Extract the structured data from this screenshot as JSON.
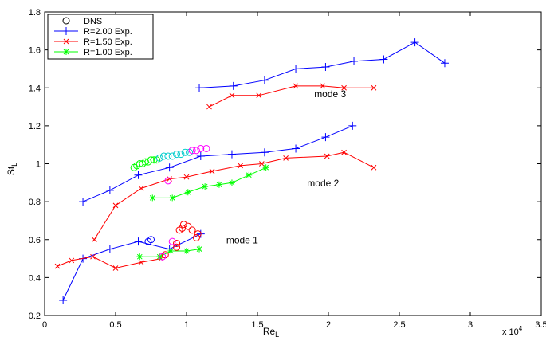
{
  "chart_data": {
    "type": "scatter",
    "xlabel": "Re",
    "xlabel_sub": "L",
    "ylabel": "St",
    "ylabel_sub": "L",
    "x_multiplier": "x 10",
    "x_multiplier_exp": "4",
    "xlim": [
      0,
      35000
    ],
    "ylim": [
      0.2,
      1.8
    ],
    "xticks": [
      0,
      5000,
      10000,
      15000,
      20000,
      25000,
      30000,
      35000
    ],
    "xtick_labels": [
      "0",
      "0.5",
      "1",
      "1.5",
      "2",
      "2.5",
      "3",
      "3.5"
    ],
    "yticks": [
      0.2,
      0.4,
      0.6,
      0.8,
      1.0,
      1.2,
      1.4,
      1.6,
      1.8
    ],
    "ytick_labels": [
      "0.2",
      "0.4",
      "0.6",
      "0.8",
      "1",
      "1.2",
      "1.4",
      "1.6",
      "1.8"
    ],
    "grid": false,
    "legend_position": "top-left",
    "legend": [
      {
        "label": "DNS",
        "marker": "circle",
        "color": "#000000",
        "line": false
      },
      {
        "label": "R=2.00 Exp.",
        "marker": "plus",
        "color": "#0000ff",
        "line": true
      },
      {
        "label": "R=1.50 Exp.",
        "marker": "x",
        "color": "#ff0000",
        "line": true
      },
      {
        "label": "R=1.00 Exp.",
        "marker": "star",
        "color": "#00ff00",
        "line": true
      }
    ],
    "annotations": [
      {
        "text": "mode 3",
        "x": 19000,
        "y": 1.35
      },
      {
        "text": "mode 2",
        "x": 18500,
        "y": 0.88
      },
      {
        "text": "mode 1",
        "x": 12800,
        "y": 0.58
      }
    ],
    "series": [
      {
        "color": "#0000ff",
        "marker": "plus",
        "line": true,
        "points": [
          [
            10900,
            1.4
          ],
          [
            13300,
            1.41
          ],
          [
            15500,
            1.44
          ],
          [
            17700,
            1.5
          ],
          [
            19800,
            1.51
          ],
          [
            21800,
            1.54
          ],
          [
            23900,
            1.55
          ],
          [
            26100,
            1.64
          ],
          [
            28200,
            1.53
          ]
        ]
      },
      {
        "color": "#0000ff",
        "marker": "plus",
        "line": true,
        "points": [
          [
            2700,
            0.8
          ],
          [
            4600,
            0.86
          ],
          [
            6600,
            0.94
          ],
          [
            8800,
            0.98
          ],
          [
            11000,
            1.04
          ],
          [
            13200,
            1.05
          ],
          [
            15500,
            1.06
          ],
          [
            17700,
            1.08
          ],
          [
            19800,
            1.14
          ],
          [
            21700,
            1.2
          ]
        ]
      },
      {
        "color": "#0000ff",
        "marker": "plus",
        "line": true,
        "points": [
          [
            1300,
            0.28
          ],
          [
            2700,
            0.5
          ],
          [
            4600,
            0.55
          ],
          [
            6600,
            0.59
          ],
          [
            8800,
            0.55
          ],
          [
            11000,
            0.63
          ]
        ]
      },
      {
        "color": "#ff0000",
        "marker": "x",
        "line": true,
        "points": [
          [
            11600,
            1.3
          ],
          [
            13200,
            1.36
          ],
          [
            15100,
            1.36
          ],
          [
            17700,
            1.41
          ],
          [
            19600,
            1.41
          ],
          [
            21100,
            1.4
          ],
          [
            23200,
            1.4
          ]
        ]
      },
      {
        "color": "#ff0000",
        "marker": "x",
        "line": true,
        "points": [
          [
            3500,
            0.6
          ],
          [
            5000,
            0.78
          ],
          [
            6800,
            0.87
          ],
          [
            8800,
            0.92
          ],
          [
            10000,
            0.93
          ],
          [
            11800,
            0.96
          ],
          [
            13800,
            0.99
          ],
          [
            15300,
            1.0
          ],
          [
            17000,
            1.03
          ],
          [
            19900,
            1.04
          ],
          [
            21100,
            1.06
          ],
          [
            23200,
            0.98
          ]
        ]
      },
      {
        "color": "#ff0000",
        "marker": "x",
        "line": true,
        "points": [
          [
            900,
            0.46
          ],
          [
            1900,
            0.49
          ],
          [
            3400,
            0.51
          ],
          [
            5000,
            0.45
          ],
          [
            6800,
            0.48
          ],
          [
            8200,
            0.5
          ]
        ]
      },
      {
        "color": "#00ff00",
        "marker": "star",
        "line": true,
        "points": [
          [
            7600,
            0.82
          ],
          [
            9000,
            0.82
          ],
          [
            10100,
            0.85
          ],
          [
            11300,
            0.88
          ],
          [
            12300,
            0.89
          ],
          [
            13200,
            0.9
          ],
          [
            14400,
            0.94
          ],
          [
            15600,
            0.98
          ]
        ]
      },
      {
        "color": "#00ff00",
        "marker": "star",
        "line": true,
        "points": [
          [
            6700,
            0.51
          ],
          [
            8100,
            0.51
          ],
          [
            8900,
            0.54
          ],
          [
            10000,
            0.54
          ],
          [
            10900,
            0.55
          ]
        ]
      },
      {
        "color": "#ff0000",
        "marker": "circle",
        "line": false,
        "points": [
          [
            8500,
            0.52
          ],
          [
            9300,
            0.56
          ],
          [
            9300,
            0.58
          ],
          [
            9500,
            0.65
          ],
          [
            9700,
            0.66
          ],
          [
            9800,
            0.68
          ],
          [
            10100,
            0.67
          ],
          [
            10400,
            0.65
          ],
          [
            10700,
            0.61
          ],
          [
            10800,
            0.63
          ]
        ]
      },
      {
        "color": "#0000ff",
        "marker": "circle",
        "line": false,
        "points": [
          [
            7300,
            0.59
          ],
          [
            7500,
            0.6
          ]
        ]
      },
      {
        "color": "#ff00ff",
        "marker": "circle",
        "line": false,
        "points": [
          [
            8300,
            0.51
          ],
          [
            9000,
            0.59
          ],
          [
            8700,
            0.91
          ]
        ]
      },
      {
        "color": "#00ff00",
        "marker": "circle",
        "line": false,
        "points": [
          [
            6300,
            0.98
          ],
          [
            6500,
            0.99
          ],
          [
            6700,
            1.0
          ],
          [
            6900,
            1.0
          ],
          [
            7100,
            1.01
          ],
          [
            7300,
            1.01
          ],
          [
            7500,
            1.02
          ],
          [
            7700,
            1.02
          ],
          [
            7900,
            1.02
          ]
        ]
      },
      {
        "color": "#00cccc",
        "marker": "circle",
        "line": false,
        "points": [
          [
            8100,
            1.03
          ],
          [
            8400,
            1.04
          ],
          [
            8700,
            1.04
          ],
          [
            9000,
            1.04
          ],
          [
            9300,
            1.05
          ],
          [
            9600,
            1.05
          ],
          [
            9900,
            1.06
          ],
          [
            10200,
            1.06
          ]
        ]
      },
      {
        "color": "#ff00ff",
        "marker": "circle",
        "line": false,
        "points": [
          [
            10400,
            1.07
          ],
          [
            10700,
            1.07
          ],
          [
            11000,
            1.08
          ],
          [
            11400,
            1.08
          ]
        ]
      }
    ]
  }
}
